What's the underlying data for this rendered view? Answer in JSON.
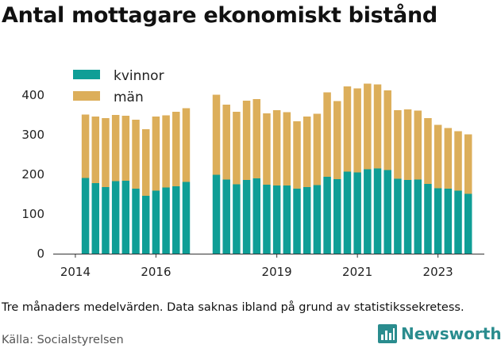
{
  "title": "Antal mottagare ekonomiskt bistånd",
  "caption": "Tre månaders medelvärden. Data saknas ibland på grund av statistikssekretess.",
  "source": "Källa: Socialstyrelsen",
  "brand": "Newsworthy",
  "colors": {
    "kvinnor": "#0f9e96",
    "man": "#dcae5a",
    "axis": "#333333",
    "brand": "#2a8c8e"
  },
  "chart_data": {
    "type": "bar",
    "stacked": true,
    "ylim": [
      0,
      450
    ],
    "yticks": [
      0,
      100,
      200,
      300,
      400
    ],
    "xlim": [
      2013.45,
      2024.15
    ],
    "xticks": [
      2014,
      2016,
      2019,
      2021,
      2023
    ],
    "legend": [
      "kvinnor",
      "män"
    ],
    "legend_position": "top-left",
    "x": [
      2014.25,
      2014.5,
      2014.75,
      2015.0,
      2015.25,
      2015.5,
      2015.75,
      2016.0,
      2016.25,
      2016.5,
      2016.75,
      2017.5,
      2017.75,
      2018.0,
      2018.25,
      2018.5,
      2018.75,
      2019.0,
      2019.25,
      2019.5,
      2019.75,
      2020.0,
      2020.25,
      2020.5,
      2020.75,
      2021.0,
      2021.25,
      2021.5,
      2021.75,
      2022.0,
      2022.25,
      2022.5,
      2022.75,
      2023.0,
      2023.25,
      2023.5,
      2023.75
    ],
    "series": [
      {
        "name": "kvinnor",
        "values": [
          191,
          178,
          168,
          183,
          184,
          164,
          146,
          159,
          167,
          170,
          181,
          199,
          187,
          175,
          186,
          190,
          174,
          172,
          172,
          164,
          168,
          173,
          194,
          188,
          207,
          205,
          213,
          215,
          211,
          189,
          186,
          187,
          176,
          165,
          164,
          159,
          151
        ]
      },
      {
        "name": "män",
        "values": [
          160,
          168,
          174,
          167,
          164,
          174,
          168,
          187,
          182,
          188,
          186,
          202,
          189,
          183,
          200,
          200,
          180,
          190,
          185,
          170,
          178,
          180,
          213,
          197,
          215,
          212,
          216,
          212,
          201,
          173,
          178,
          174,
          166,
          160,
          153,
          150,
          150
        ]
      }
    ]
  }
}
